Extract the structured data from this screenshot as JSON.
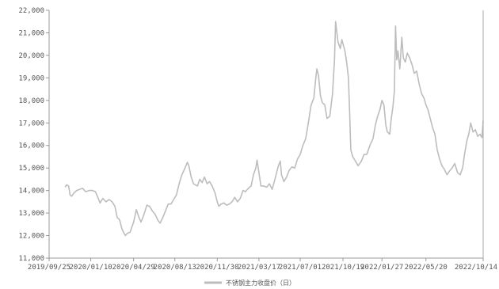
{
  "chart_data": {
    "type": "line",
    "title": "",
    "xlabel": "",
    "ylabel": "",
    "ylim": [
      11000,
      22000
    ],
    "xlim": [
      "2019-09-25",
      "2022-10-14"
    ],
    "grid": false,
    "legend_position": "bottom-center",
    "y_tick_labels": [
      "11,000",
      "12,000",
      "13,000",
      "14,000",
      "15,000",
      "16,000",
      "17,000",
      "18,000",
      "19,000",
      "20,000",
      "21,000",
      "22,000"
    ],
    "y_tick_values": [
      11000,
      12000,
      13000,
      14000,
      15000,
      16000,
      17000,
      18000,
      19000,
      20000,
      21000,
      22000
    ],
    "x_tick_labels": [
      "2019/09/25",
      "2020/01/10",
      "2020/04/29",
      "2020/08/13",
      "2020/11/30",
      "2021/03/17",
      "2021/07/01",
      "2021/10/19",
      "2022/01/27",
      "2022/05/20",
      "2022/10/14"
    ],
    "x_tick_dates": [
      "2019-09-25",
      "2020-01-10",
      "2020-04-29",
      "2020-08-13",
      "2020-11-30",
      "2021-03-17",
      "2021-07-01",
      "2021-10-19",
      "2022-01-27",
      "2022-05-20",
      "2022-10-14"
    ],
    "series": [
      {
        "name": "不锈钢主力收盘价（日）",
        "color": "#bdbdbd",
        "points": [
          [
            "2019-11-05",
            14150
          ],
          [
            "2019-11-09",
            14250
          ],
          [
            "2019-11-14",
            14200
          ],
          [
            "2019-11-18",
            13800
          ],
          [
            "2019-11-22",
            13750
          ],
          [
            "2019-11-28",
            13900
          ],
          [
            "2019-12-05",
            14000
          ],
          [
            "2019-12-12",
            14050
          ],
          [
            "2019-12-20",
            14100
          ],
          [
            "2019-12-28",
            13950
          ],
          [
            "2020-01-06",
            14000
          ],
          [
            "2020-01-14",
            14000
          ],
          [
            "2020-01-22",
            13950
          ],
          [
            "2020-02-03",
            13450
          ],
          [
            "2020-02-10",
            13650
          ],
          [
            "2020-02-18",
            13500
          ],
          [
            "2020-02-26",
            13600
          ],
          [
            "2020-03-05",
            13500
          ],
          [
            "2020-03-12",
            13300
          ],
          [
            "2020-03-18",
            12800
          ],
          [
            "2020-03-24",
            12700
          ],
          [
            "2020-03-30",
            12300
          ],
          [
            "2020-04-03",
            12150
          ],
          [
            "2020-04-08",
            12000
          ],
          [
            "2020-04-13",
            12100
          ],
          [
            "2020-04-20",
            12150
          ],
          [
            "2020-04-29",
            12600
          ],
          [
            "2020-05-06",
            13150
          ],
          [
            "2020-05-12",
            12850
          ],
          [
            "2020-05-18",
            12600
          ],
          [
            "2020-05-25",
            12900
          ],
          [
            "2020-06-02",
            13350
          ],
          [
            "2020-06-09",
            13300
          ],
          [
            "2020-06-16",
            13100
          ],
          [
            "2020-06-23",
            12950
          ],
          [
            "2020-06-30",
            12700
          ],
          [
            "2020-07-06",
            12550
          ],
          [
            "2020-07-13",
            12800
          ],
          [
            "2020-07-20",
            13100
          ],
          [
            "2020-07-27",
            13400
          ],
          [
            "2020-08-03",
            13400
          ],
          [
            "2020-08-10",
            13600
          ],
          [
            "2020-08-17",
            13800
          ],
          [
            "2020-08-24",
            14300
          ],
          [
            "2020-08-31",
            14700
          ],
          [
            "2020-09-07",
            14950
          ],
          [
            "2020-09-14",
            15250
          ],
          [
            "2020-09-18",
            15100
          ],
          [
            "2020-09-24",
            14600
          ],
          [
            "2020-09-30",
            14300
          ],
          [
            "2020-10-10",
            14200
          ],
          [
            "2020-10-16",
            14500
          ],
          [
            "2020-10-22",
            14350
          ],
          [
            "2020-10-28",
            14600
          ],
          [
            "2020-11-04",
            14300
          ],
          [
            "2020-11-10",
            14400
          ],
          [
            "2020-11-17",
            14200
          ],
          [
            "2020-11-24",
            13900
          ],
          [
            "2020-11-30",
            13500
          ],
          [
            "2020-12-04",
            13300
          ],
          [
            "2020-12-10",
            13400
          ],
          [
            "2020-12-17",
            13450
          ],
          [
            "2020-12-24",
            13350
          ],
          [
            "2020-12-31",
            13400
          ],
          [
            "2021-01-07",
            13500
          ],
          [
            "2021-01-14",
            13700
          ],
          [
            "2021-01-21",
            13500
          ],
          [
            "2021-01-28",
            13650
          ],
          [
            "2021-02-04",
            14000
          ],
          [
            "2021-02-10",
            13950
          ],
          [
            "2021-02-18",
            14100
          ],
          [
            "2021-02-25",
            14200
          ],
          [
            "2021-03-03",
            14700
          ],
          [
            "2021-03-09",
            15000
          ],
          [
            "2021-03-12",
            15350
          ],
          [
            "2021-03-17",
            14800
          ],
          [
            "2021-03-22",
            14200
          ],
          [
            "2021-03-29",
            14200
          ],
          [
            "2021-04-06",
            14150
          ],
          [
            "2021-04-13",
            14300
          ],
          [
            "2021-04-20",
            14050
          ],
          [
            "2021-04-27",
            14500
          ],
          [
            "2021-05-06",
            15100
          ],
          [
            "2021-05-11",
            15300
          ],
          [
            "2021-05-14",
            14700
          ],
          [
            "2021-05-20",
            14400
          ],
          [
            "2021-05-27",
            14600
          ],
          [
            "2021-06-03",
            14900
          ],
          [
            "2021-06-10",
            15050
          ],
          [
            "2021-06-17",
            15000
          ],
          [
            "2021-06-24",
            15400
          ],
          [
            "2021-07-01",
            15600
          ],
          [
            "2021-07-08",
            16000
          ],
          [
            "2021-07-15",
            16300
          ],
          [
            "2021-07-22",
            17000
          ],
          [
            "2021-07-29",
            17800
          ],
          [
            "2021-08-05",
            18100
          ],
          [
            "2021-08-10",
            19000
          ],
          [
            "2021-08-13",
            19400
          ],
          [
            "2021-08-17",
            19100
          ],
          [
            "2021-08-22",
            18200
          ],
          [
            "2021-08-27",
            17900
          ],
          [
            "2021-09-02",
            17800
          ],
          [
            "2021-09-08",
            17200
          ],
          [
            "2021-09-15",
            17300
          ],
          [
            "2021-09-22",
            18300
          ],
          [
            "2021-09-27",
            19800
          ],
          [
            "2021-09-30",
            21500
          ],
          [
            "2021-10-06",
            20600
          ],
          [
            "2021-10-12",
            20300
          ],
          [
            "2021-10-16",
            20700
          ],
          [
            "2021-10-19",
            20500
          ],
          [
            "2021-10-24",
            20200
          ],
          [
            "2021-10-29",
            19600
          ],
          [
            "2021-11-02",
            19000
          ],
          [
            "2021-11-05",
            17500
          ],
          [
            "2021-11-08",
            15800
          ],
          [
            "2021-11-13",
            15500
          ],
          [
            "2021-11-20",
            15300
          ],
          [
            "2021-11-27",
            15100
          ],
          [
            "2021-12-05",
            15300
          ],
          [
            "2021-12-12",
            15600
          ],
          [
            "2021-12-19",
            15600
          ],
          [
            "2021-12-27",
            16000
          ],
          [
            "2022-01-04",
            16300
          ],
          [
            "2022-01-10",
            16900
          ],
          [
            "2022-01-16",
            17300
          ],
          [
            "2022-01-22",
            17600
          ],
          [
            "2022-01-27",
            18000
          ],
          [
            "2022-02-01",
            17800
          ],
          [
            "2022-02-06",
            16900
          ],
          [
            "2022-02-10",
            16600
          ],
          [
            "2022-02-16",
            16500
          ],
          [
            "2022-02-20",
            17200
          ],
          [
            "2022-02-24",
            17700
          ],
          [
            "2022-02-28",
            18400
          ],
          [
            "2022-03-03",
            21300
          ],
          [
            "2022-03-06",
            19800
          ],
          [
            "2022-03-09",
            20200
          ],
          [
            "2022-03-14",
            19400
          ],
          [
            "2022-03-19",
            20800
          ],
          [
            "2022-03-23",
            19900
          ],
          [
            "2022-03-28",
            19700
          ],
          [
            "2022-04-02",
            20100
          ],
          [
            "2022-04-08",
            19900
          ],
          [
            "2022-04-14",
            19600
          ],
          [
            "2022-04-20",
            19200
          ],
          [
            "2022-04-26",
            19300
          ],
          [
            "2022-05-03",
            18700
          ],
          [
            "2022-05-09",
            18300
          ],
          [
            "2022-05-15",
            18100
          ],
          [
            "2022-05-20",
            17800
          ],
          [
            "2022-05-25",
            17600
          ],
          [
            "2022-05-31",
            17200
          ],
          [
            "2022-06-06",
            16800
          ],
          [
            "2022-06-12",
            16500
          ],
          [
            "2022-06-18",
            15800
          ],
          [
            "2022-06-24",
            15400
          ],
          [
            "2022-06-30",
            15100
          ],
          [
            "2022-07-06",
            14950
          ],
          [
            "2022-07-13",
            14700
          ],
          [
            "2022-07-19",
            14850
          ],
          [
            "2022-07-26",
            15000
          ],
          [
            "2022-08-02",
            15200
          ],
          [
            "2022-08-09",
            14800
          ],
          [
            "2022-08-16",
            14700
          ],
          [
            "2022-08-22",
            15000
          ],
          [
            "2022-08-28",
            15700
          ],
          [
            "2022-09-02",
            16200
          ],
          [
            "2022-09-07",
            16500
          ],
          [
            "2022-09-12",
            17000
          ],
          [
            "2022-09-18",
            16600
          ],
          [
            "2022-09-24",
            16700
          ],
          [
            "2022-09-30",
            16400
          ],
          [
            "2022-10-06",
            16500
          ],
          [
            "2022-10-11",
            16350
          ],
          [
            "2022-10-14",
            17100
          ]
        ]
      }
    ]
  }
}
